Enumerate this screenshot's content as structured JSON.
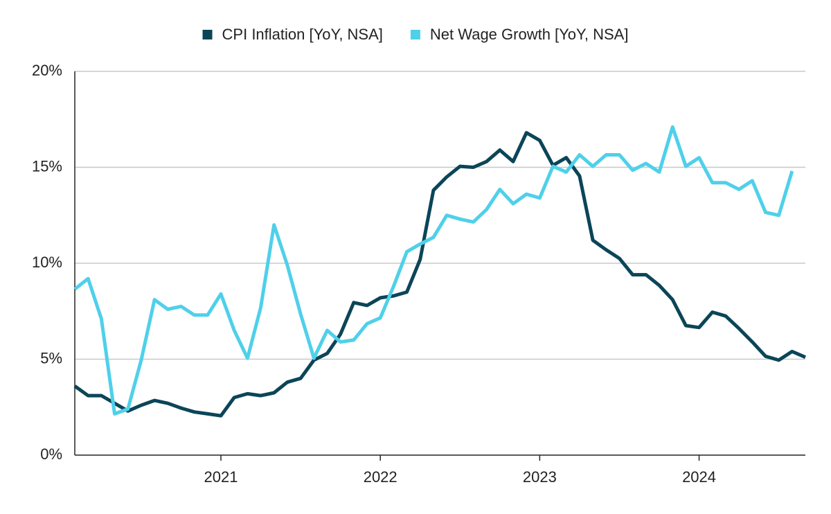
{
  "chart_data": {
    "type": "line",
    "categories": [
      null,
      null,
      null,
      null,
      null,
      null,
      null,
      null,
      null,
      null,
      null,
      "2021",
      null,
      null,
      null,
      null,
      null,
      null,
      null,
      null,
      null,
      null,
      null,
      "2022",
      null,
      null,
      null,
      null,
      null,
      null,
      null,
      null,
      null,
      null,
      null,
      "2023",
      null,
      null,
      null,
      null,
      null,
      null,
      null,
      null,
      null,
      null,
      null,
      "2024",
      null,
      null,
      null,
      null,
      null,
      null,
      null,
      null
    ],
    "series": [
      {
        "name": "CPI Inflation [YoY, NSA]",
        "color": "#0b4558",
        "values": [
          3.6,
          3.1,
          3.1,
          2.7,
          2.3,
          2.6,
          2.85,
          2.7,
          2.45,
          2.25,
          2.15,
          2.05,
          3.0,
          3.2,
          3.1,
          3.25,
          3.8,
          4.0,
          4.95,
          5.3,
          6.3,
          7.95,
          7.8,
          8.2,
          8.3,
          8.5,
          10.2,
          13.8,
          14.5,
          15.05,
          15.0,
          15.3,
          15.9,
          15.3,
          16.8,
          16.4,
          15.1,
          15.5,
          14.55,
          11.2,
          10.7,
          10.25,
          9.4,
          9.4,
          8.85,
          8.1,
          6.75,
          6.65,
          7.45,
          7.25,
          6.6,
          5.9,
          5.15,
          4.95,
          5.4,
          5.1
        ]
      },
      {
        "name": "Net Wage Growth [YoY, NSA]",
        "color": "#4fd0ea",
        "values": [
          8.65,
          9.2,
          7.1,
          2.15,
          2.4,
          4.95,
          8.1,
          7.6,
          7.75,
          7.3,
          7.3,
          8.4,
          6.5,
          5.05,
          7.7,
          12.0,
          9.9,
          7.35,
          5.05,
          6.5,
          5.9,
          6.0,
          6.85,
          7.15,
          8.8,
          10.6,
          11.0,
          11.35,
          12.5,
          12.3,
          12.15,
          12.8,
          13.85,
          13.1,
          13.6,
          13.4,
          15.05,
          14.75,
          15.65,
          15.05,
          15.65,
          15.65,
          14.85,
          15.2,
          14.75,
          17.1,
          15.05,
          15.5,
          14.2,
          14.2,
          13.85,
          14.3,
          12.65,
          12.5,
          14.8,
          null
        ]
      }
    ],
    "ylim": [
      0,
      20
    ],
    "yticks": [
      {
        "value": 0,
        "label": "0%"
      },
      {
        "value": 5,
        "label": "5%"
      },
      {
        "value": 10,
        "label": "10%"
      },
      {
        "value": 15,
        "label": "15%"
      },
      {
        "value": 20,
        "label": "20%"
      }
    ],
    "grid": true,
    "legend": "top"
  }
}
